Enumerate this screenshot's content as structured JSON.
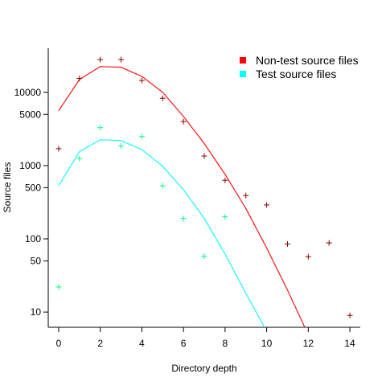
{
  "chart_data": {
    "type": "scatter",
    "title": "",
    "xlabel": "Directory depth",
    "ylabel": "Source files",
    "xlim": [
      -0.5,
      14.5
    ],
    "ylim": [
      6.2,
      40000
    ],
    "y_scale": "log",
    "grid": false,
    "legend_position": "top-right",
    "x_ticks": [
      0,
      2,
      4,
      6,
      8,
      10,
      12,
      14
    ],
    "x_tick_labels": [
      "0",
      "2",
      "4",
      "6",
      "8",
      "10",
      "12",
      "14"
    ],
    "y_ticks": [
      10,
      50,
      100,
      500,
      1000,
      5000,
      10000
    ],
    "y_tick_labels": [
      "10",
      "50",
      "100",
      "500",
      "1000",
      "5000",
      "10000"
    ],
    "series": [
      {
        "name": "Non-test source files",
        "legend_color": "#ff0000",
        "point_color": "#8b0000",
        "line_color": "#ff0000",
        "points": {
          "x": [
            0,
            1,
            2,
            3,
            4,
            5,
            6,
            7,
            8,
            9,
            10,
            11,
            12,
            13,
            14
          ],
          "y": [
            1700,
            15500,
            28000,
            28000,
            14500,
            8300,
            4000,
            1350,
            630,
            390,
            290,
            85,
            57,
            88,
            9
          ]
        },
        "fit": {
          "x": [
            0,
            1,
            2,
            3,
            4,
            5,
            6,
            7,
            8,
            9,
            10,
            11,
            12
          ],
          "y": [
            5600,
            15000,
            22500,
            22000,
            16500,
            10000,
            4700,
            2000,
            760,
            260,
            75,
            20,
            4.9
          ]
        }
      },
      {
        "name": "Test source files",
        "legend_color": "#00ffff",
        "point_color": "#00ff80",
        "line_color": "#00ffff",
        "points": {
          "x": [
            0,
            1,
            2,
            3,
            4,
            5,
            6,
            7,
            8
          ],
          "y": [
            22,
            1250,
            3300,
            1850,
            2500,
            530,
            190,
            58,
            200
          ]
        },
        "fit": {
          "x": [
            0,
            1,
            2,
            3,
            4,
            5,
            6,
            7,
            8,
            9,
            10
          ],
          "y": [
            530,
            1550,
            2250,
            2200,
            1650,
            980,
            470,
            190,
            62,
            18,
            5.5
          ]
        }
      }
    ]
  }
}
